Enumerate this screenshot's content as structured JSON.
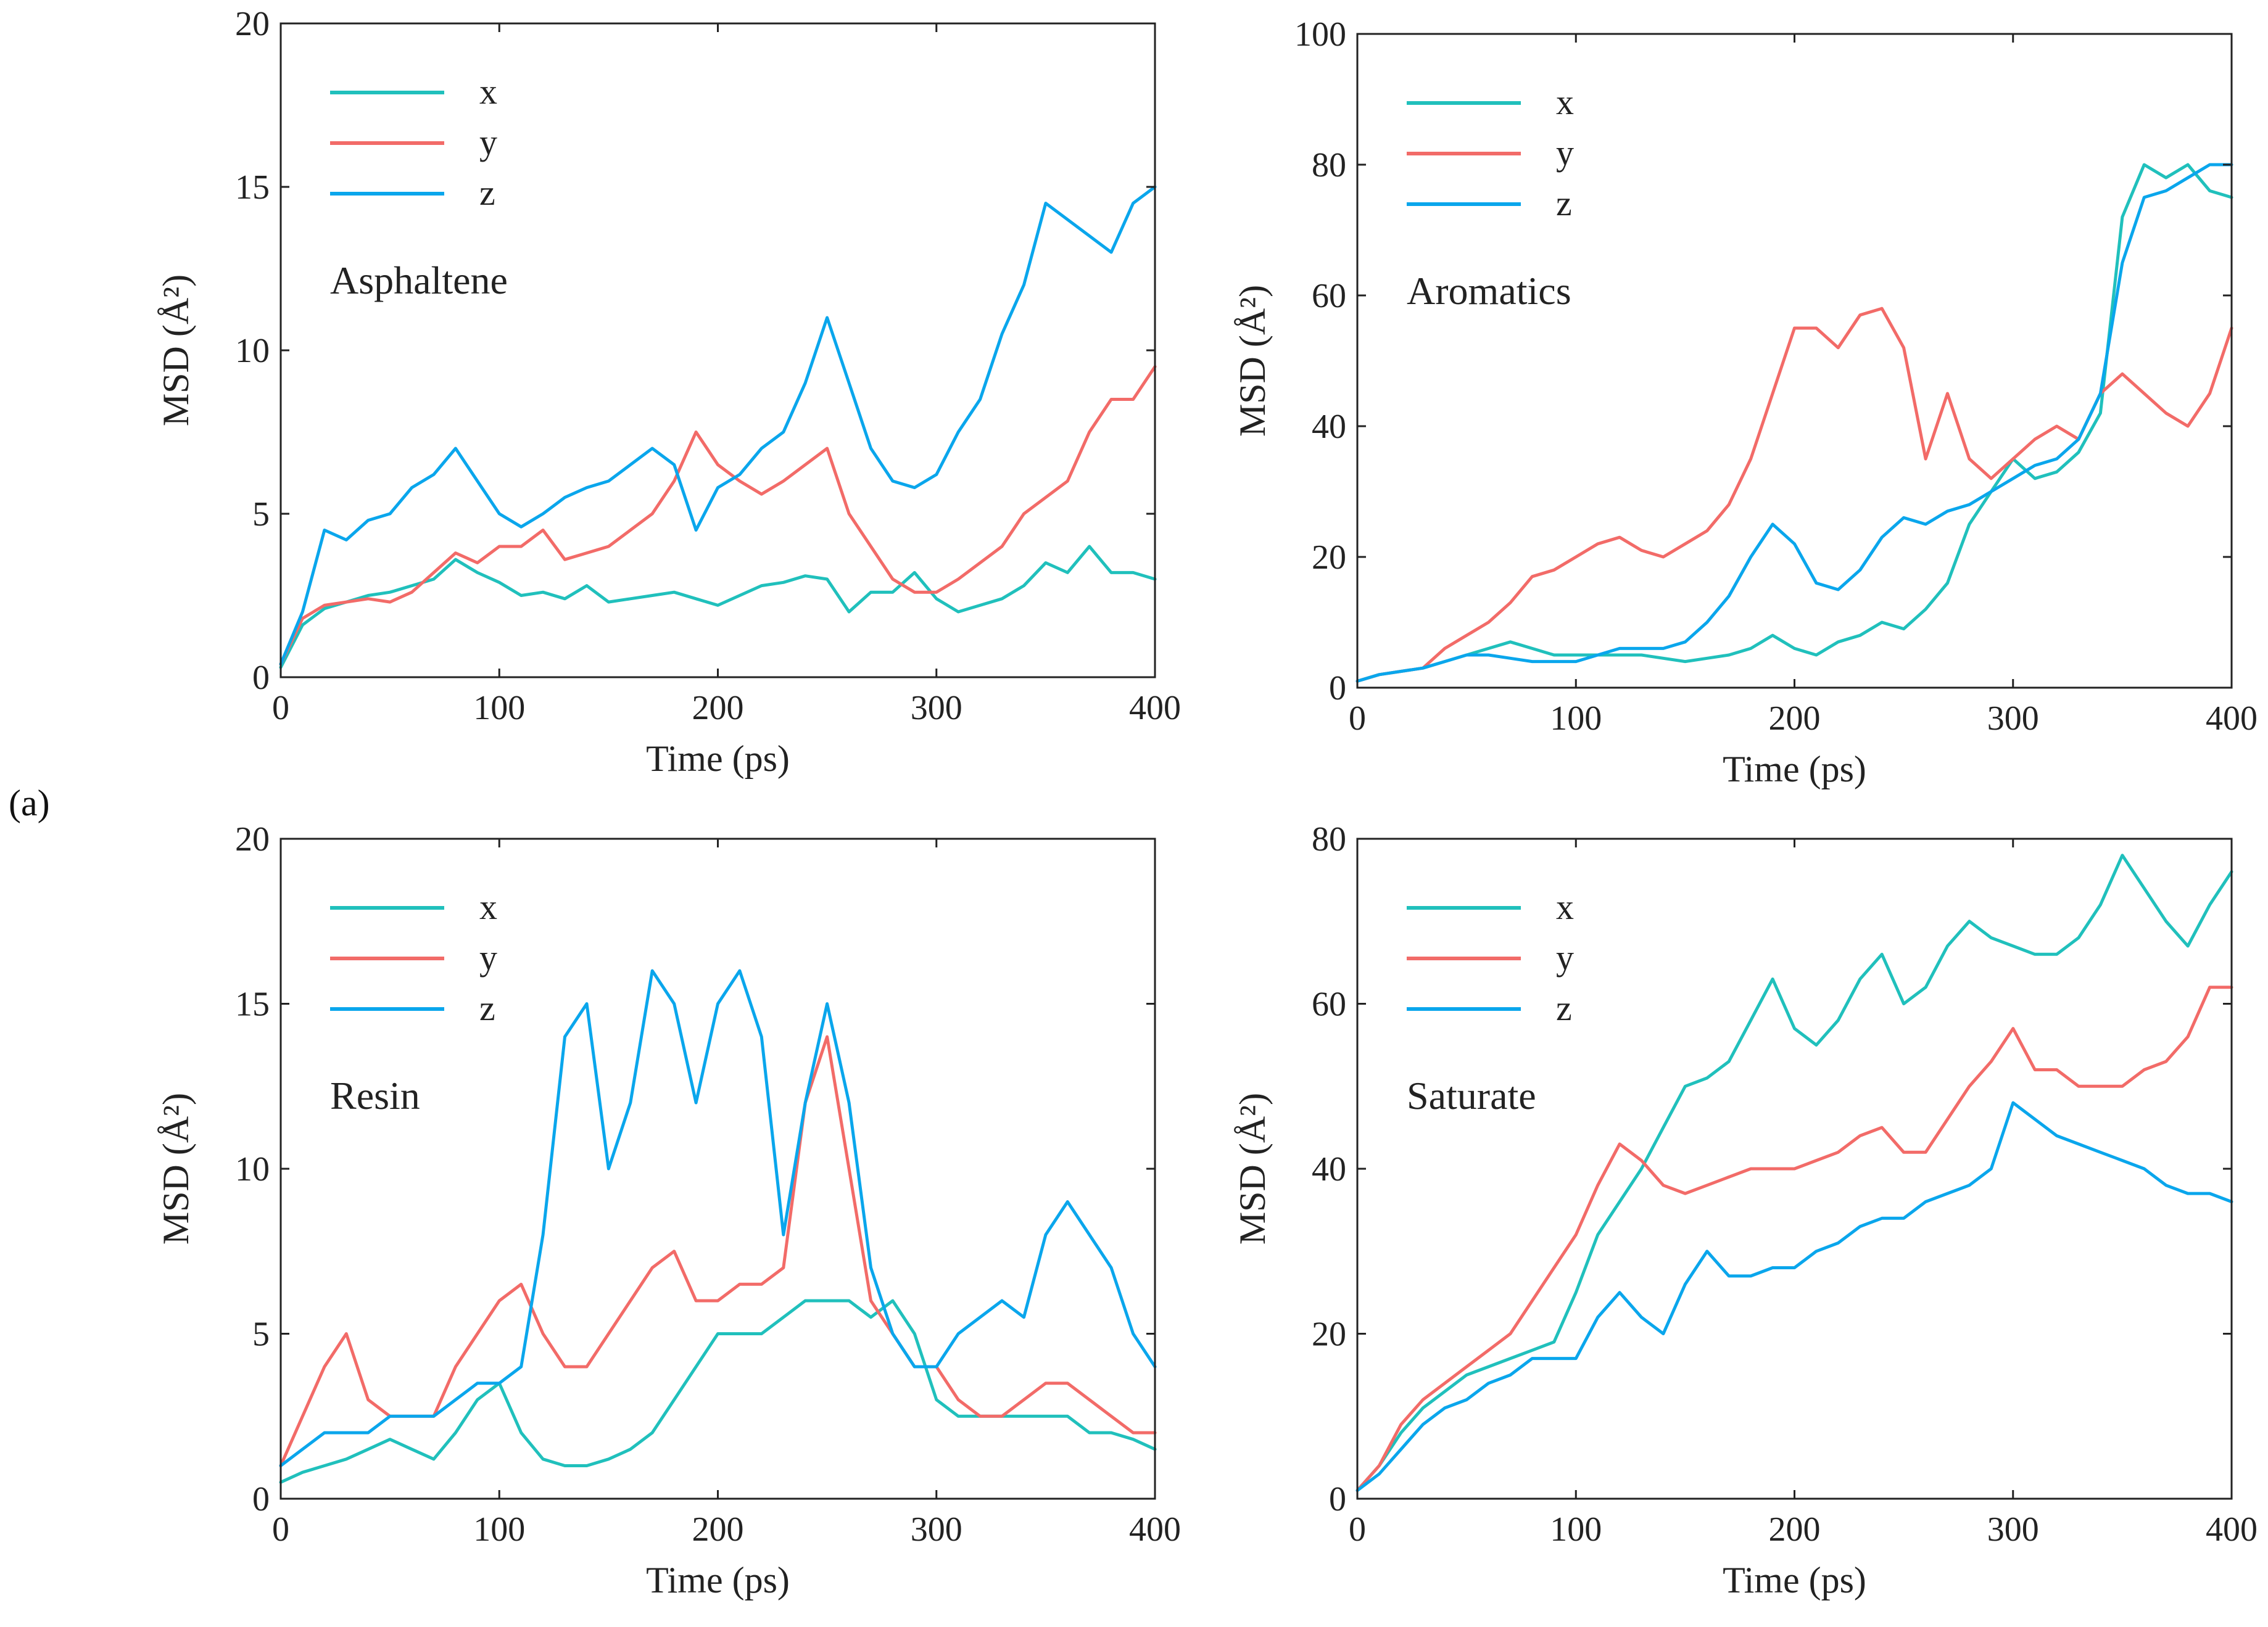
{
  "figure": {
    "panel_label": "(a)",
    "colors": {
      "x": "#20c0bc",
      "y": "#f26b68",
      "z": "#0aa6ec",
      "axis": "#222222"
    }
  },
  "chart_data": [
    {
      "type": "line",
      "title": "Asphaltene",
      "xlabel": "Time (ps)",
      "ylabel": "MSD (Å²)",
      "xlim": [
        0,
        400
      ],
      "ylim": [
        0,
        20
      ],
      "xticks": [
        0,
        100,
        200,
        300,
        400
      ],
      "yticks": [
        0,
        5,
        10,
        15,
        20
      ],
      "legend": [
        "x",
        "y",
        "z"
      ],
      "legend_position": "top-left",
      "x": [
        0,
        10,
        20,
        30,
        40,
        50,
        60,
        70,
        80,
        90,
        100,
        110,
        120,
        130,
        140,
        150,
        160,
        170,
        180,
        190,
        200,
        210,
        220,
        230,
        240,
        250,
        260,
        270,
        280,
        290,
        300,
        310,
        320,
        330,
        340,
        350,
        360,
        370,
        380,
        390,
        400
      ],
      "series": [
        {
          "name": "x",
          "values": [
            0.3,
            1.6,
            2.1,
            2.3,
            2.5,
            2.6,
            2.8,
            3.0,
            3.6,
            3.2,
            2.9,
            2.5,
            2.6,
            2.4,
            2.8,
            2.3,
            2.4,
            2.5,
            2.6,
            2.4,
            2.2,
            2.5,
            2.8,
            2.9,
            3.1,
            3.0,
            2.0,
            2.6,
            2.6,
            3.2,
            2.4,
            2.0,
            2.2,
            2.4,
            2.8,
            3.5,
            3.2,
            4.0,
            3.2,
            3.2,
            3.0
          ]
        },
        {
          "name": "y",
          "values": [
            0.4,
            1.8,
            2.2,
            2.3,
            2.4,
            2.3,
            2.6,
            3.2,
            3.8,
            3.5,
            4.0,
            4.0,
            4.5,
            3.6,
            3.8,
            4.0,
            4.5,
            5.0,
            6.0,
            7.5,
            6.5,
            6.0,
            5.6,
            6.0,
            6.5,
            7.0,
            5.0,
            4.0,
            3.0,
            2.6,
            2.6,
            3.0,
            3.5,
            4.0,
            5.0,
            5.5,
            6.0,
            7.5,
            8.5,
            8.5,
            9.5
          ]
        },
        {
          "name": "z",
          "values": [
            0.4,
            2.0,
            4.5,
            4.2,
            4.8,
            5.0,
            5.8,
            6.2,
            7.0,
            6.0,
            5.0,
            4.6,
            5.0,
            5.5,
            5.8,
            6.0,
            6.5,
            7.0,
            6.5,
            4.5,
            5.8,
            6.2,
            7.0,
            7.5,
            9.0,
            11.0,
            9.0,
            7.0,
            6.0,
            5.8,
            6.2,
            7.5,
            8.5,
            10.5,
            12.0,
            14.5,
            14.0,
            13.5,
            13.0,
            14.5,
            15.0
          ]
        }
      ]
    },
    {
      "type": "line",
      "title": "Aromatics",
      "xlabel": "Time (ps)",
      "ylabel": "MSD (Å²)",
      "xlim": [
        0,
        400
      ],
      "ylim": [
        0,
        100
      ],
      "xticks": [
        0,
        100,
        200,
        300,
        400
      ],
      "yticks": [
        0,
        20,
        40,
        60,
        80,
        100
      ],
      "legend": [
        "x",
        "y",
        "z"
      ],
      "legend_position": "top-left",
      "x": [
        0,
        10,
        20,
        30,
        40,
        50,
        60,
        70,
        80,
        90,
        100,
        110,
        120,
        130,
        140,
        150,
        160,
        170,
        180,
        190,
        200,
        210,
        220,
        230,
        240,
        250,
        260,
        270,
        280,
        290,
        300,
        310,
        320,
        330,
        340,
        350,
        360,
        370,
        380,
        390,
        400
      ],
      "series": [
        {
          "name": "x",
          "values": [
            1.0,
            2.0,
            2.5,
            3.0,
            4.0,
            5.0,
            6.0,
            7.0,
            6.0,
            5.0,
            5.0,
            5.0,
            5.0,
            5.0,
            4.5,
            4.0,
            4.5,
            5.0,
            6.0,
            8.0,
            6.0,
            5.0,
            7.0,
            8.0,
            10.0,
            9.0,
            12.0,
            16.0,
            25.0,
            30.0,
            35.0,
            32.0,
            33.0,
            36.0,
            42.0,
            72.0,
            80.0,
            78.0,
            80.0,
            76.0,
            75.0
          ]
        },
        {
          "name": "y",
          "values": [
            1.0,
            2.0,
            2.5,
            3.0,
            6.0,
            8.0,
            10.0,
            13.0,
            17.0,
            18.0,
            20.0,
            22.0,
            23.0,
            21.0,
            20.0,
            22.0,
            24.0,
            28.0,
            35.0,
            45.0,
            55.0,
            55.0,
            52.0,
            57.0,
            58.0,
            52.0,
            35.0,
            45.0,
            35.0,
            32.0,
            35.0,
            38.0,
            40.0,
            38.0,
            45.0,
            48.0,
            45.0,
            42.0,
            40.0,
            45.0,
            55.0
          ]
        },
        {
          "name": "z",
          "values": [
            1.0,
            2.0,
            2.5,
            3.0,
            4.0,
            5.0,
            5.0,
            4.5,
            4.0,
            4.0,
            4.0,
            5.0,
            6.0,
            6.0,
            6.0,
            7.0,
            10.0,
            14.0,
            20.0,
            25.0,
            22.0,
            16.0,
            15.0,
            18.0,
            23.0,
            26.0,
            25.0,
            27.0,
            28.0,
            30.0,
            32.0,
            34.0,
            35.0,
            38.0,
            45.0,
            65.0,
            75.0,
            76.0,
            78.0,
            80.0,
            80.0
          ]
        }
      ]
    },
    {
      "type": "line",
      "title": "Resin",
      "xlabel": "Time (ps)",
      "ylabel": "MSD (Å²)",
      "xlim": [
        0,
        400
      ],
      "ylim": [
        0,
        20
      ],
      "xticks": [
        0,
        100,
        200,
        300,
        400
      ],
      "yticks": [
        0,
        5,
        10,
        15,
        20
      ],
      "legend": [
        "x",
        "y",
        "z"
      ],
      "legend_position": "top-left",
      "x": [
        0,
        10,
        20,
        30,
        40,
        50,
        60,
        70,
        80,
        90,
        100,
        110,
        120,
        130,
        140,
        150,
        160,
        170,
        180,
        190,
        200,
        210,
        220,
        230,
        240,
        250,
        260,
        270,
        280,
        290,
        300,
        310,
        320,
        330,
        340,
        350,
        360,
        370,
        380,
        390,
        400
      ],
      "series": [
        {
          "name": "x",
          "values": [
            0.5,
            0.8,
            1.0,
            1.2,
            1.5,
            1.8,
            1.5,
            1.2,
            2.0,
            3.0,
            3.5,
            2.0,
            1.2,
            1.0,
            1.0,
            1.2,
            1.5,
            2.0,
            3.0,
            4.0,
            5.0,
            5.0,
            5.0,
            5.5,
            6.0,
            6.0,
            6.0,
            5.5,
            6.0,
            5.0,
            3.0,
            2.5,
            2.5,
            2.5,
            2.5,
            2.5,
            2.5,
            2.0,
            2.0,
            1.8,
            1.5
          ]
        },
        {
          "name": "y",
          "values": [
            1.0,
            2.5,
            4.0,
            5.0,
            3.0,
            2.5,
            2.5,
            2.5,
            4.0,
            5.0,
            6.0,
            6.5,
            5.0,
            4.0,
            4.0,
            5.0,
            6.0,
            7.0,
            7.5,
            6.0,
            6.0,
            6.5,
            6.5,
            7.0,
            12.0,
            14.0,
            10.0,
            6.0,
            5.0,
            4.0,
            4.0,
            3.0,
            2.5,
            2.5,
            3.0,
            3.5,
            3.5,
            3.0,
            2.5,
            2.0,
            2.0
          ]
        },
        {
          "name": "z",
          "values": [
            1.0,
            1.5,
            2.0,
            2.0,
            2.0,
            2.5,
            2.5,
            2.5,
            3.0,
            3.5,
            3.5,
            4.0,
            8.0,
            14.0,
            15.0,
            10.0,
            12.0,
            16.0,
            15.0,
            12.0,
            15.0,
            16.0,
            14.0,
            8.0,
            12.0,
            15.0,
            12.0,
            7.0,
            5.0,
            4.0,
            4.0,
            5.0,
            5.5,
            6.0,
            5.5,
            8.0,
            9.0,
            8.0,
            7.0,
            5.0,
            4.0
          ]
        }
      ]
    },
    {
      "type": "line",
      "title": "Saturate",
      "xlabel": "Time (ps)",
      "ylabel": "MSD (Å²)",
      "xlim": [
        0,
        400
      ],
      "ylim": [
        0,
        80
      ],
      "xticks": [
        0,
        100,
        200,
        300,
        400
      ],
      "yticks": [
        0,
        20,
        40,
        60,
        80
      ],
      "legend": [
        "x",
        "y",
        "z"
      ],
      "legend_position": "top-left",
      "x": [
        0,
        10,
        20,
        30,
        40,
        50,
        60,
        70,
        80,
        90,
        100,
        110,
        120,
        130,
        140,
        150,
        160,
        170,
        180,
        190,
        200,
        210,
        220,
        230,
        240,
        250,
        260,
        270,
        280,
        290,
        300,
        310,
        320,
        330,
        340,
        350,
        360,
        370,
        380,
        390,
        400
      ],
      "series": [
        {
          "name": "x",
          "values": [
            1.0,
            4.0,
            8.0,
            11.0,
            13.0,
            15.0,
            16.0,
            17.0,
            18.0,
            19.0,
            25.0,
            32.0,
            36.0,
            40.0,
            45.0,
            50.0,
            51.0,
            53.0,
            58.0,
            63.0,
            57.0,
            55.0,
            58.0,
            63.0,
            66.0,
            60.0,
            62.0,
            67.0,
            70.0,
            68.0,
            67.0,
            66.0,
            66.0,
            68.0,
            72.0,
            78.0,
            74.0,
            70.0,
            67.0,
            72.0,
            76.0
          ]
        },
        {
          "name": "y",
          "values": [
            1.0,
            4.0,
            9.0,
            12.0,
            14.0,
            16.0,
            18.0,
            20.0,
            24.0,
            28.0,
            32.0,
            38.0,
            43.0,
            41.0,
            38.0,
            37.0,
            38.0,
            39.0,
            40.0,
            40.0,
            40.0,
            41.0,
            42.0,
            44.0,
            45.0,
            42.0,
            42.0,
            46.0,
            50.0,
            53.0,
            57.0,
            52.0,
            52.0,
            50.0,
            50.0,
            50.0,
            52.0,
            53.0,
            56.0,
            62.0,
            62.0
          ]
        },
        {
          "name": "z",
          "values": [
            1.0,
            3.0,
            6.0,
            9.0,
            11.0,
            12.0,
            14.0,
            15.0,
            17.0,
            17.0,
            17.0,
            22.0,
            25.0,
            22.0,
            20.0,
            26.0,
            30.0,
            27.0,
            27.0,
            28.0,
            28.0,
            30.0,
            31.0,
            33.0,
            34.0,
            34.0,
            36.0,
            37.0,
            38.0,
            40.0,
            48.0,
            46.0,
            44.0,
            43.0,
            42.0,
            41.0,
            40.0,
            38.0,
            37.0,
            37.0,
            36.0
          ]
        }
      ]
    }
  ]
}
